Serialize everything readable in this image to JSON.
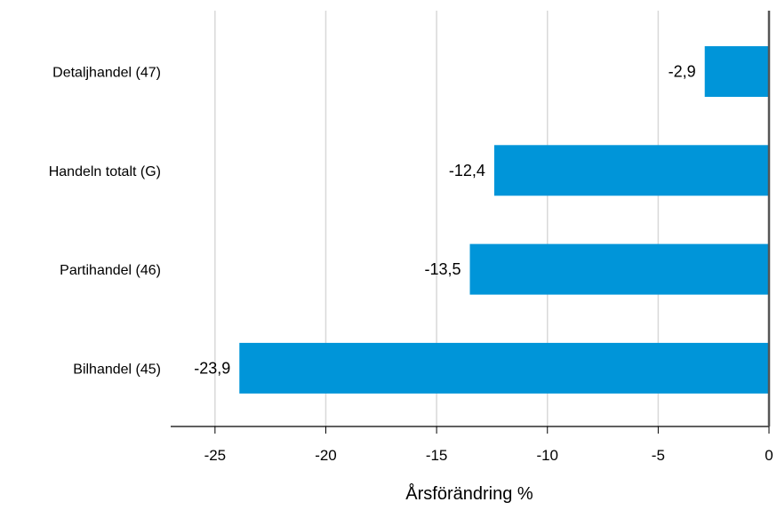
{
  "chart_data": {
    "type": "bar",
    "orientation": "horizontal",
    "categories": [
      "Detaljhandel (47)",
      "Handeln totalt (G)",
      "Partihandel (46)",
      "Bilhandel (45)"
    ],
    "values": [
      -2.9,
      -12.4,
      -13.5,
      -23.9
    ],
    "value_labels": [
      "-2,9",
      "-12,4",
      "-13,5",
      "-23,9"
    ],
    "xlabel": "Årsförändring %",
    "xlim": [
      -27,
      0
    ],
    "xticks": [
      -25,
      -20,
      -15,
      -10,
      -5,
      0
    ],
    "xtick_labels": [
      "-25",
      "-20",
      "-15",
      "-10",
      "-5",
      "0"
    ],
    "grid": true,
    "bar_color": "#0095d9",
    "grid_color": "#d9d9d9",
    "axis_color": "#000000"
  }
}
